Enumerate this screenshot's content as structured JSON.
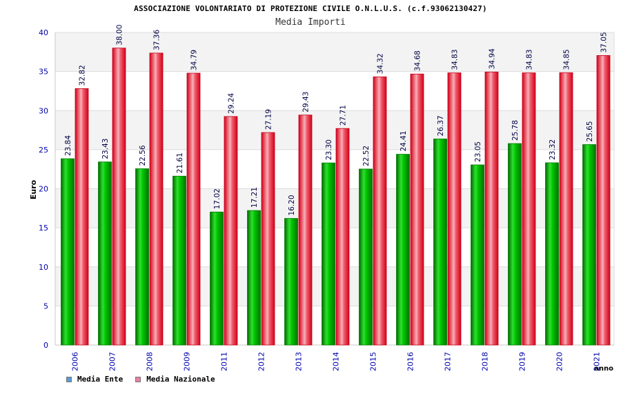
{
  "header": {
    "title": "ASSOCIAZIONE VOLONTARIATO DI PROTEZIONE CIVILE O.N.L.U.S. (c.f.93062130427)",
    "subtitle": "Media Importi"
  },
  "legend": {
    "items": [
      {
        "label": "Media Ente",
        "color": "#5b9bd5"
      },
      {
        "label": "Media Nazionale",
        "color": "#e87fa8"
      }
    ]
  },
  "chart_data": {
    "type": "bar",
    "title": "Media Importi",
    "xlabel": "anno",
    "ylabel": "Euro",
    "ylim": [
      0,
      40
    ],
    "yticks": [
      0,
      5,
      10,
      15,
      20,
      25,
      30,
      35,
      40
    ],
    "categories": [
      "2006",
      "2007",
      "2008",
      "2009",
      "2011",
      "2012",
      "2013",
      "2014",
      "2015",
      "2016",
      "2017",
      "2018",
      "2019",
      "2020",
      "2021"
    ],
    "series": [
      {
        "name": "Media Ente",
        "color": "#00b000",
        "values": [
          23.84,
          23.43,
          22.56,
          21.61,
          17.02,
          17.21,
          16.2,
          23.3,
          22.52,
          24.41,
          26.37,
          23.05,
          25.78,
          23.32,
          25.65
        ],
        "labels": [
          "23.84",
          "23.43",
          "22.56",
          "21.61",
          "17.02",
          "17.21",
          "16.20",
          "23.30",
          "22.52",
          "24.41",
          "26.37",
          "23.05",
          "25.78",
          "23.32",
          "25.65"
        ]
      },
      {
        "name": "Media Nazionale",
        "color": "#e8001c",
        "values": [
          32.82,
          38.0,
          37.36,
          34.79,
          29.24,
          27.19,
          29.43,
          27.71,
          34.32,
          34.68,
          34.83,
          34.94,
          34.83,
          34.85,
          37.05
        ],
        "labels": [
          "32.82",
          "38.00",
          "37.36",
          "34.79",
          "29.24",
          "27.19",
          "29.43",
          "27.71",
          "34.32",
          "34.68",
          "34.83",
          "34.94",
          "34.83",
          "34.85",
          "37.05"
        ]
      }
    ],
    "grid": true,
    "legend_position": "bottom-left"
  }
}
